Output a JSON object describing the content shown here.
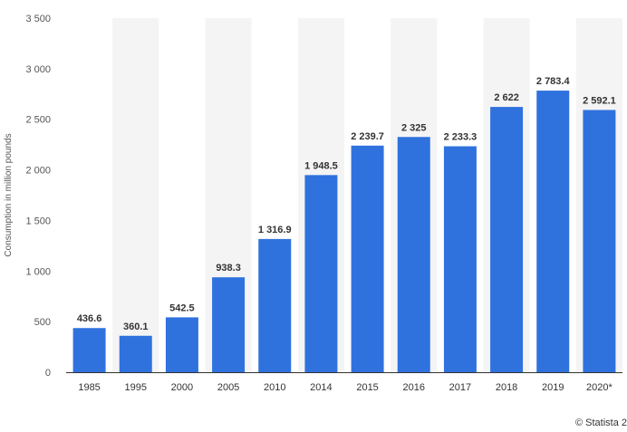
{
  "chart_data": {
    "type": "bar",
    "categories": [
      "1985",
      "1995",
      "2000",
      "2005",
      "2010",
      "2014",
      "2015",
      "2016",
      "2017",
      "2018",
      "2019",
      "2020*"
    ],
    "values": [
      436.6,
      360.1,
      542.5,
      938.3,
      1316.9,
      1948.5,
      2239.7,
      2325,
      2233.3,
      2622,
      2783.4,
      2592.1
    ],
    "value_labels": [
      "436.6",
      "360.1",
      "542.5",
      "938.3",
      "1 316.9",
      "1 948.5",
      "2 239.7",
      "2 325",
      "2 233.3",
      "2 622",
      "2 783.4",
      "2 592.1"
    ],
    "yticks": [
      0,
      500,
      1000,
      1500,
      2000,
      2500,
      3000,
      3500
    ],
    "ytick_labels": [
      "0",
      "500",
      "1 000",
      "1 500",
      "2 000",
      "2 500",
      "3 000",
      "3 500"
    ],
    "ylim": [
      0,
      3500
    ],
    "xlabel": "",
    "ylabel": "Consumption in million pounds",
    "bar_color": "#2f72de",
    "band_color": "#f4f4f4",
    "grid": false,
    "legend": "none"
  },
  "credit": "© Statista 2"
}
